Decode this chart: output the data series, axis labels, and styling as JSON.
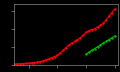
{
  "background_color": "#000000",
  "axes_color": "#888888",
  "red_line": {
    "color": "#ff0000",
    "x": [
      1950,
      1952,
      1954,
      1956,
      1958,
      1960,
      1962,
      1964,
      1966,
      1968,
      1970,
      1972,
      1974,
      1976,
      1978,
      1980,
      1982,
      1984,
      1986,
      1988,
      1990,
      1992,
      1994,
      1996,
      1998,
      2000,
      2002,
      2004,
      2006,
      2008,
      2010,
      2012,
      2014,
      2016,
      2018,
      2020
    ],
    "y": [
      0.2,
      0.25,
      0.3,
      0.35,
      0.38,
      0.42,
      0.5,
      0.6,
      0.75,
      0.9,
      1.1,
      1.4,
      1.7,
      2.0,
      2.3,
      2.6,
      3.2,
      4.0,
      4.8,
      5.5,
      6.0,
      6.5,
      7.0,
      7.5,
      8.2,
      9.0,
      9.5,
      9.8,
      10.0,
      10.5,
      11.0,
      11.5,
      12.5,
      13.5,
      14.5,
      15.5
    ]
  },
  "green_line": {
    "color": "#00bb00",
    "x": [
      2000,
      2002,
      2004,
      2006,
      2008,
      2010,
      2012,
      2014,
      2016,
      2018,
      2020
    ],
    "y": [
      3.0,
      3.5,
      4.0,
      4.5,
      5.0,
      5.5,
      6.0,
      6.5,
      7.0,
      7.5,
      8.0
    ]
  },
  "xlim": [
    1950,
    2022
  ],
  "ylim": [
    0,
    17
  ],
  "linewidth": 0.8,
  "marker": "o",
  "markersize": 0.8
}
